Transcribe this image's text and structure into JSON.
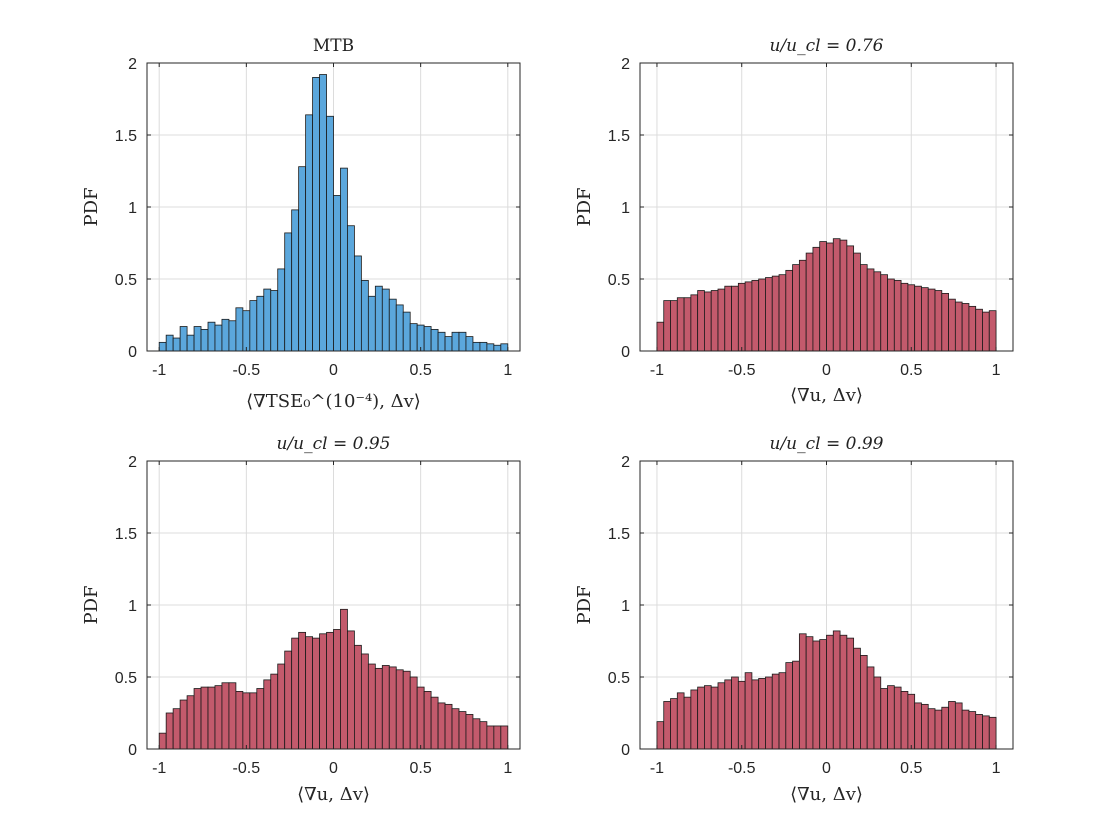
{
  "colors": {
    "blue": "#5ba7dc",
    "red": "#c35a6c"
  },
  "chart_data": [
    {
      "type": "bar",
      "title": "MTB",
      "xlabel": "⟨∇TSE₀^(10⁻⁴), Δv⟩",
      "ylabel": "PDF",
      "xlim": [
        -1.07,
        1.07
      ],
      "ylim": [
        0,
        2
      ],
      "xticks": [
        -1,
        -0.5,
        0,
        0.5,
        1
      ],
      "xtick_labels": [
        "-1",
        "-0.5",
        "0",
        "0.5",
        "1"
      ],
      "yticks": [
        0,
        0.5,
        1,
        1.5,
        2
      ],
      "ytick_labels": [
        "0",
        "0.5",
        "1",
        "1.5",
        "2"
      ],
      "bin_start": -1.0,
      "bin_width": 0.04,
      "color": "blue",
      "values": [
        0.06,
        0.11,
        0.09,
        0.17,
        0.11,
        0.17,
        0.15,
        0.2,
        0.18,
        0.22,
        0.21,
        0.3,
        0.28,
        0.35,
        0.38,
        0.43,
        0.42,
        0.57,
        0.82,
        0.98,
        1.28,
        1.64,
        1.9,
        1.92,
        1.63,
        1.08,
        1.27,
        0.87,
        0.66,
        0.49,
        0.38,
        0.45,
        0.43,
        0.36,
        0.32,
        0.27,
        0.19,
        0.18,
        0.17,
        0.15,
        0.13,
        0.1,
        0.13,
        0.13,
        0.1,
        0.06,
        0.06,
        0.05,
        0.04,
        0.05
      ]
    },
    {
      "type": "bar",
      "title": "u/u_cl = 0.76",
      "xlabel": "⟨∇u, Δv⟩",
      "ylabel": "PDF",
      "xlim": [
        -1.1,
        1.1
      ],
      "ylim": [
        0,
        2
      ],
      "xticks": [
        -1,
        -0.5,
        0,
        0.5,
        1
      ],
      "xtick_labels": [
        "-1",
        "-0.5",
        "0",
        "0.5",
        "1"
      ],
      "yticks": [
        0,
        0.5,
        1,
        1.5,
        2
      ],
      "ytick_labels": [
        "0",
        "0.5",
        "1",
        "1.5",
        "2"
      ],
      "bin_start": -1.0,
      "bin_width": 0.04,
      "color": "red",
      "values": [
        0.2,
        0.35,
        0.35,
        0.37,
        0.37,
        0.39,
        0.42,
        0.41,
        0.42,
        0.43,
        0.45,
        0.45,
        0.47,
        0.48,
        0.49,
        0.5,
        0.51,
        0.52,
        0.53,
        0.56,
        0.6,
        0.63,
        0.68,
        0.72,
        0.76,
        0.75,
        0.78,
        0.77,
        0.73,
        0.68,
        0.6,
        0.57,
        0.55,
        0.53,
        0.5,
        0.49,
        0.47,
        0.46,
        0.45,
        0.44,
        0.43,
        0.42,
        0.4,
        0.36,
        0.34,
        0.33,
        0.31,
        0.29,
        0.27,
        0.28
      ]
    },
    {
      "type": "bar",
      "title": "u/u_cl = 0.95",
      "xlabel": "⟨∇u, Δv⟩",
      "ylabel": "PDF",
      "xlim": [
        -1.07,
        1.07
      ],
      "ylim": [
        0,
        2
      ],
      "xticks": [
        -1,
        -0.5,
        0,
        0.5,
        1
      ],
      "xtick_labels": [
        "-1",
        "-0.5",
        "0",
        "0.5",
        "1"
      ],
      "yticks": [
        0,
        0.5,
        1,
        1.5,
        2
      ],
      "ytick_labels": [
        "0",
        "0.5",
        "1",
        "1.5",
        "2"
      ],
      "bin_start": -1.0,
      "bin_width": 0.04,
      "color": "red",
      "values": [
        0.11,
        0.25,
        0.28,
        0.34,
        0.37,
        0.42,
        0.43,
        0.43,
        0.44,
        0.46,
        0.46,
        0.4,
        0.39,
        0.39,
        0.42,
        0.48,
        0.52,
        0.59,
        0.68,
        0.77,
        0.81,
        0.78,
        0.77,
        0.8,
        0.81,
        0.83,
        0.97,
        0.82,
        0.72,
        0.66,
        0.59,
        0.56,
        0.58,
        0.57,
        0.55,
        0.54,
        0.5,
        0.43,
        0.4,
        0.36,
        0.32,
        0.31,
        0.28,
        0.26,
        0.24,
        0.21,
        0.19,
        0.16,
        0.16,
        0.16
      ]
    },
    {
      "type": "bar",
      "title": "u/u_cl = 0.99",
      "xlabel": "⟨∇u, Δv⟩",
      "ylabel": "PDF",
      "xlim": [
        -1.1,
        1.1
      ],
      "ylim": [
        0,
        2
      ],
      "xticks": [
        -1,
        -0.5,
        0,
        0.5,
        1
      ],
      "xtick_labels": [
        "-1",
        "-0.5",
        "0",
        "0.5",
        "1"
      ],
      "yticks": [
        0,
        0.5,
        1,
        1.5,
        2
      ],
      "ytick_labels": [
        "0",
        "0.5",
        "1",
        "1.5",
        "2"
      ],
      "bin_start": -1.0,
      "bin_width": 0.04,
      "color": "red",
      "values": [
        0.19,
        0.33,
        0.35,
        0.39,
        0.36,
        0.41,
        0.43,
        0.44,
        0.43,
        0.46,
        0.48,
        0.5,
        0.47,
        0.53,
        0.48,
        0.49,
        0.5,
        0.52,
        0.53,
        0.6,
        0.61,
        0.8,
        0.78,
        0.75,
        0.76,
        0.79,
        0.82,
        0.79,
        0.77,
        0.7,
        0.65,
        0.57,
        0.5,
        0.42,
        0.44,
        0.43,
        0.4,
        0.38,
        0.32,
        0.31,
        0.28,
        0.27,
        0.29,
        0.33,
        0.32,
        0.27,
        0.26,
        0.24,
        0.23,
        0.22
      ]
    }
  ]
}
